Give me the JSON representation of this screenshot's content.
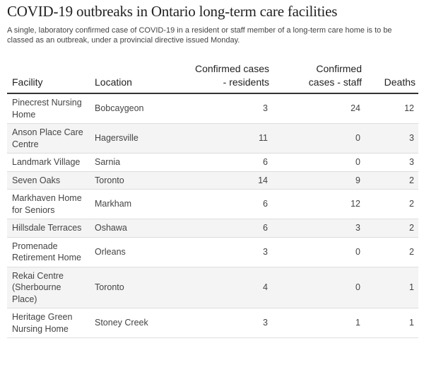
{
  "header": {
    "title": "COVID-19 outbreaks in Ontario long-term care facilities",
    "subtitle": "A single, laboratory confirmed case of COVID-19 in a resident or staff member of a long-term care home is to be classed as an outbreak, under a provincial directive issued Monday."
  },
  "chart_data": {
    "type": "table",
    "columns": [
      "Facility",
      "Location",
      "Confirmed cases - residents",
      "Confirmed cases - staff",
      "Deaths"
    ],
    "rows": [
      {
        "facility": "Pinecrest Nursing Home",
        "location": "Bobcaygeon",
        "residents": 3,
        "staff": 24,
        "deaths": 12
      },
      {
        "facility": "Anson Place Care Centre",
        "location": "Hagersville",
        "residents": 11,
        "staff": 0,
        "deaths": 3
      },
      {
        "facility": "Landmark Village",
        "location": "Sarnia",
        "residents": 6,
        "staff": 0,
        "deaths": 3
      },
      {
        "facility": "Seven Oaks",
        "location": "Toronto",
        "residents": 14,
        "staff": 9,
        "deaths": 2
      },
      {
        "facility": "Markhaven Home for Seniors",
        "location": "Markham",
        "residents": 6,
        "staff": 12,
        "deaths": 2
      },
      {
        "facility": "Hillsdale Terraces",
        "location": "Oshawa",
        "residents": 6,
        "staff": 3,
        "deaths": 2
      },
      {
        "facility": "Promenade Retirement Home",
        "location": "Orleans",
        "residents": 3,
        "staff": 0,
        "deaths": 2
      },
      {
        "facility": "Rekai Centre (Sherbourne Place)",
        "location": "Toronto",
        "residents": 4,
        "staff": 0,
        "deaths": 1
      },
      {
        "facility": "Heritage Green Nursing Home",
        "location": "Stoney Creek",
        "residents": 3,
        "staff": 1,
        "deaths": 1
      }
    ]
  }
}
